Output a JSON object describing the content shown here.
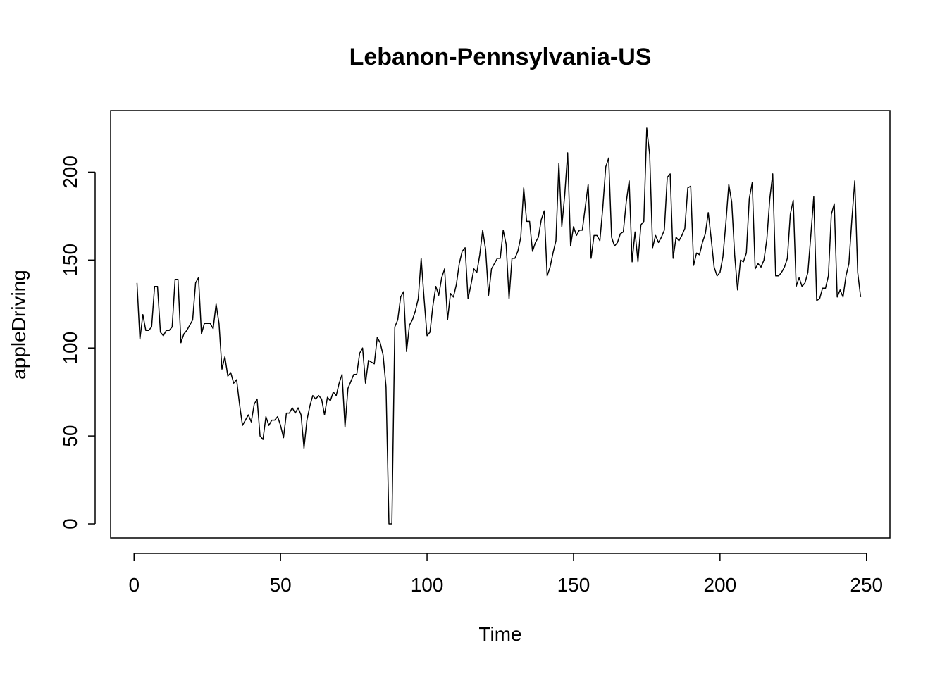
{
  "chart_data": {
    "type": "line",
    "title": "Lebanon-Pennsylvania-US",
    "xlabel": "Time",
    "ylabel": "appleDriving",
    "xlim": [
      -8,
      258
    ],
    "ylim": [
      -8,
      235
    ],
    "x_ticks": [
      0,
      50,
      100,
      150,
      200,
      250
    ],
    "y_ticks": [
      0,
      50,
      100,
      150,
      200
    ],
    "x_tick_labels": [
      "0",
      "50",
      "100",
      "150",
      "200",
      "250"
    ],
    "y_tick_labels": [
      "0",
      "50",
      "100",
      "150",
      "200"
    ],
    "grid": false,
    "legend": "none",
    "line_color": "#000000",
    "series": [
      {
        "x_start": 1,
        "x_step": 1,
        "values": [
          137,
          105,
          119,
          110,
          110,
          112,
          135,
          135,
          109,
          107,
          110,
          110,
          112,
          139,
          139,
          103,
          108,
          110,
          113,
          116,
          137,
          140,
          108,
          114,
          114,
          114,
          111,
          125,
          114,
          88,
          95,
          84,
          86,
          80,
          82,
          68,
          56,
          59,
          62,
          58,
          68,
          71,
          50,
          48,
          61,
          56,
          59,
          59,
          61,
          56,
          49,
          63,
          63,
          66,
          63,
          66,
          62,
          43,
          59,
          67,
          73,
          71,
          73,
          71,
          62,
          72,
          70,
          75,
          73,
          80,
          85,
          55,
          77,
          81,
          85,
          85,
          97,
          100,
          80,
          93,
          92,
          91,
          106,
          103,
          96,
          78,
          0,
          0,
          112,
          116,
          129,
          132,
          98,
          113,
          116,
          121,
          128,
          151,
          128,
          107,
          109,
          124,
          135,
          130,
          140,
          145,
          116,
          131,
          129,
          136,
          148,
          155,
          157,
          128,
          136,
          145,
          143,
          153,
          167,
          156,
          130,
          145,
          148,
          151,
          151,
          167,
          159,
          128,
          151,
          151,
          155,
          163,
          191,
          172,
          172,
          155,
          160,
          163,
          173,
          178,
          141,
          146,
          154,
          161,
          205,
          169,
          187,
          211,
          158,
          169,
          164,
          167,
          167,
          180,
          193,
          151,
          164,
          164,
          161,
          180,
          203,
          208,
          163,
          158,
          160,
          165,
          166,
          183,
          195,
          149,
          166,
          149,
          170,
          172,
          225,
          210,
          157,
          164,
          160,
          163,
          167,
          197,
          199,
          151,
          163,
          161,
          164,
          168,
          191,
          192,
          147,
          154,
          153,
          160,
          165,
          177,
          162,
          146,
          141,
          143,
          152,
          171,
          193,
          183,
          153,
          133,
          150,
          149,
          154,
          185,
          194,
          145,
          148,
          146,
          150,
          162,
          185,
          199,
          141,
          141,
          143,
          146,
          151,
          176,
          184,
          135,
          140,
          135,
          137,
          143,
          164,
          186,
          127,
          128,
          134,
          134,
          141,
          176,
          182,
          129,
          133,
          129,
          141,
          148,
          173,
          195,
          143,
          129
        ]
      }
    ]
  }
}
